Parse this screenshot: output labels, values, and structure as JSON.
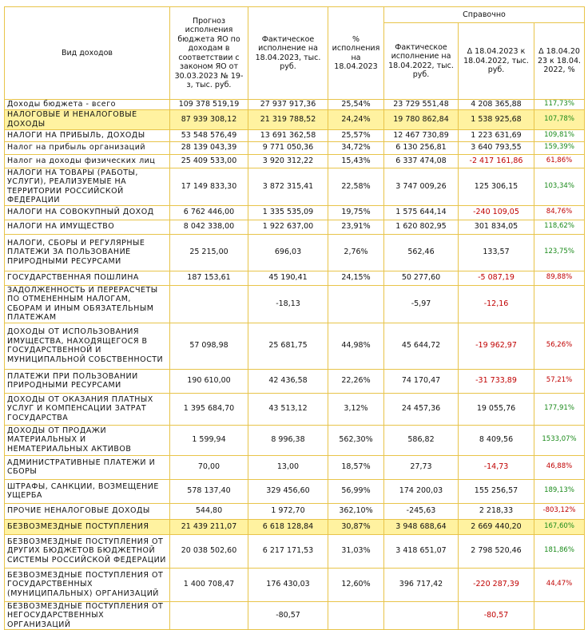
{
  "table": {
    "header": {
      "label_col": "Вид доходов",
      "forecast": "Прогноз исполнения бюджета ЯО по доходам в соответствии с законом ЯО от 30.03.2023 № 19-з, тыс. руб.",
      "actual_2023": "Фактическое исполнение на 18.04.2023, тыс. руб.",
      "percent": "% исполнения на 18.04.2023",
      "reference": "Справочно",
      "actual_2022": "Фактическое исполнение на 18.04.2022, тыс. руб.",
      "delta": "Δ 18.04.2023 к 18.04.2022, тыс. руб.",
      "delta_percent": "Δ 18.04.2023 к 18.04.2022, %"
    },
    "rows": [
      {
        "label": "Доходы бюджета - всего",
        "cells": [
          "109 378 519,19",
          "27 937 917,36",
          "25,54%",
          "23 729 551,48",
          "4 208 365,88",
          "117,73%"
        ]
      },
      {
        "label": "НАЛОГОВЫЕ И НЕНАЛОГОВЫЕ ДОХОДЫ",
        "highlight": true,
        "cells": [
          "87 939 308,12",
          "21 319 788,52",
          "24,24%",
          "19 780 862,84",
          "1 538 925,68",
          "107,78%"
        ]
      },
      {
        "label": "НАЛОГИ НА ПРИБЫЛЬ, ДОХОДЫ",
        "cells": [
          "53 548 576,49",
          "13 691 362,58",
          "25,57%",
          "12 467 730,89",
          "1 223 631,69",
          "109,81%"
        ]
      },
      {
        "label": "Налог на прибыль организаций",
        "cells": [
          "28 139 043,39",
          "9 771 050,36",
          "34,72%",
          "6 130 256,81",
          "3 640 793,55",
          "159,39%"
        ]
      },
      {
        "label": "Налог на доходы физических лиц",
        "cells": [
          "25 409 533,00",
          "3 920 312,22",
          "15,43%",
          "6 337 474,08",
          "-2 417 161,86",
          "61,86%"
        ]
      },
      {
        "label": "НАЛОГИ НА ТОВАРЫ (РАБОТЫ, УСЛУГИ), РЕАЛИЗУЕМЫЕ НА ТЕРРИТОРИИ РОССИЙСКОЙ ФЕДЕРАЦИИ",
        "cells": [
          "17 149 833,30",
          "3 872 315,41",
          "22,58%",
          "3 747 009,26",
          "125 306,15",
          "103,34%"
        ]
      },
      {
        "label": "НАЛОГИ НА СОВОКУПНЫЙ ДОХОД",
        "cells": [
          "6 762 446,00",
          "1 335 535,09",
          "19,75%",
          "1 575 644,14",
          "-240 109,05",
          "84,76%"
        ]
      },
      {
        "label": "НАЛОГИ НА ИМУЩЕСТВО",
        "cells": [
          "8 042 338,00",
          "1 922 637,00",
          "23,91%",
          "1 620 802,95",
          "301 834,05",
          "118,62%"
        ]
      },
      {
        "label": "НАЛОГИ, СБОРЫ И РЕГУЛЯРНЫЕ ПЛАТЕЖИ ЗА ПОЛЬЗОВАНИЕ ПРИРОДНЫМИ РЕСУРСАМИ",
        "cells": [
          "25 215,00",
          "696,03",
          "2,76%",
          "562,46",
          "133,57",
          "123,75%"
        ]
      },
      {
        "label": "ГОСУДАРСТВЕННАЯ ПОШЛИНА",
        "cells": [
          "187 153,61",
          "45 190,41",
          "24,15%",
          "50 277,60",
          "-5 087,19",
          "89,88%"
        ]
      },
      {
        "label": "ЗАДОЛЖЕННОСТЬ И ПЕРЕРАСЧЕТЫ ПО ОТМЕНЕННЫМ НАЛОГАМ, СБОРАМ И ИНЫМ ОБЯЗАТЕЛЬНЫМ ПЛАТЕЖАМ",
        "cells": [
          null,
          "-18,13",
          null,
          "-5,97",
          "-12,16",
          null
        ]
      },
      {
        "label": "ДОХОДЫ ОТ ИСПОЛЬЗОВАНИЯ ИМУЩЕСТВА, НАХОДЯЩЕГОСЯ В ГОСУДАРСТВЕННОЙ И МУНИЦИПАЛЬНОЙ СОБСТВЕННОСТИ",
        "cells": [
          "57 098,98",
          "25 681,75",
          "44,98%",
          "45 644,72",
          "-19 962,97",
          "56,26%"
        ]
      },
      {
        "label": "ПЛАТЕЖИ ПРИ ПОЛЬЗОВАНИИ ПРИРОДНЫМИ РЕСУРСАМИ",
        "cells": [
          "190 610,00",
          "42 436,58",
          "22,26%",
          "74 170,47",
          "-31 733,89",
          "57,21%"
        ]
      },
      {
        "label": "ДОХОДЫ ОТ ОКАЗАНИЯ ПЛАТНЫХ УСЛУГ И КОМПЕНСАЦИИ ЗАТРАТ ГОСУДАРСТВА",
        "cells": [
          "1 395 684,70",
          "43 513,12",
          "3,12%",
          "24 457,36",
          "19 055,76",
          "177,91%"
        ]
      },
      {
        "label": "ДОХОДЫ ОТ ПРОДАЖИ МАТЕРИАЛЬНЫХ И НЕМАТЕРИАЛЬНЫХ АКТИВОВ",
        "cells": [
          "1 599,94",
          "8 996,38",
          "562,30%",
          "586,82",
          "8 409,56",
          "1533,07%"
        ]
      },
      {
        "label": "АДМИНИСТРАТИВНЫЕ ПЛАТЕЖИ И СБОРЫ",
        "cells": [
          "70,00",
          "13,00",
          "18,57%",
          "27,73",
          "-14,73",
          "46,88%"
        ]
      },
      {
        "label": "ШТРАФЫ, САНКЦИИ, ВОЗМЕЩЕНИЕ УЩЕРБА",
        "cells": [
          "578 137,40",
          "329 456,60",
          "56,99%",
          "174 200,03",
          "155 256,57",
          "189,13%"
        ]
      },
      {
        "label": "ПРОЧИЕ НЕНАЛОГОВЫЕ ДОХОДЫ",
        "cells": [
          "544,80",
          "1 972,70",
          "362,10%",
          "-245,63",
          "2 218,33",
          "-803,12%"
        ]
      },
      {
        "label": "БЕЗВОЗМЕЗДНЫЕ ПОСТУПЛЕНИЯ",
        "highlight": true,
        "cells": [
          "21 439 211,07",
          "6 618 128,84",
          "30,87%",
          "3 948 688,64",
          "2 669 440,20",
          "167,60%"
        ]
      },
      {
        "label": "БЕЗВОЗМЕЗДНЫЕ ПОСТУПЛЕНИЯ ОТ ДРУГИХ БЮДЖЕТОВ БЮДЖЕТНОЙ СИСТЕМЫ РОССИЙСКОЙ ФЕДЕРАЦИИ",
        "cells": [
          "20 038 502,60",
          "6 217 171,53",
          "31,03%",
          "3 418 651,07",
          "2 798 520,46",
          "181,86%"
        ]
      },
      {
        "label": "БЕЗВОЗМЕЗДНЫЕ ПОСТУПЛЕНИЯ ОТ ГОСУДАРСТВЕННЫХ (МУНИЦИПАЛЬНЫХ) ОРГАНИЗАЦИЙ",
        "cells": [
          "1 400 708,47",
          "176 430,03",
          "12,60%",
          "396 717,42",
          "-220 287,39",
          "44,47%"
        ]
      },
      {
        "label": "БЕЗВОЗМЕЗДНЫЕ ПОСТУПЛЕНИЯ ОТ НЕГОСУДАРСТВЕННЫХ ОРГАНИЗАЦИЙ",
        "cells": [
          null,
          "-80,57",
          null,
          null,
          "-80,57",
          null
        ]
      }
    ]
  }
}
